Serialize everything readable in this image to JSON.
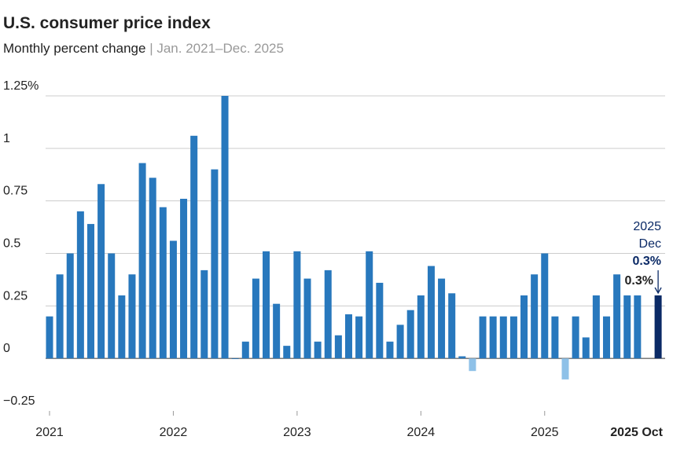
{
  "chart_data": {
    "type": "bar",
    "title": "U.S. consumer price index",
    "subtitle": "Monthly percent change",
    "subtitle_separator": "|",
    "subtitle_period": "Jan. 2021–Dec. 2025",
    "values": [
      0.2,
      0.4,
      0.5,
      0.7,
      0.64,
      0.83,
      0.5,
      0.3,
      0.4,
      0.93,
      0.86,
      0.72,
      0.56,
      0.76,
      1.06,
      0.42,
      0.9,
      1.25,
      0.0,
      0.08,
      0.38,
      0.51,
      0.26,
      0.06,
      0.51,
      0.38,
      0.08,
      0.42,
      0.11,
      0.21,
      0.2,
      0.51,
      0.36,
      0.08,
      0.16,
      0.23,
      0.3,
      0.44,
      0.38,
      0.31,
      0.01,
      -0.06,
      0.2,
      0.2,
      0.2,
      0.2,
      0.3,
      0.4,
      0.5,
      0.2,
      -0.1,
      0.2,
      0.1,
      0.3,
      0.2,
      0.4,
      0.3,
      0.3,
      null,
      0.3
    ],
    "value_labels": [
      null,
      null,
      null,
      null,
      null,
      null,
      null,
      null,
      null,
      null,
      null,
      null,
      null,
      null,
      null,
      null,
      null,
      null,
      null,
      null,
      null,
      null,
      null,
      null,
      null,
      null,
      null,
      null,
      null,
      null,
      null,
      null,
      null,
      null,
      null,
      null,
      null,
      null,
      null,
      null,
      null,
      null,
      null,
      null,
      null,
      null,
      null,
      null,
      null,
      null,
      null,
      null,
      null,
      null,
      null,
      null,
      null,
      "0.3%",
      null,
      "0.3%"
    ],
    "highlight_period": [
      "2025",
      "Dec"
    ],
    "colors": {
      "positive": "#2878bd",
      "negative": "#8ec1e8",
      "latest": "#0b2a66"
    },
    "xticks": [
      {
        "value": 0,
        "label": "2021"
      },
      {
        "value": 12,
        "label": "2022"
      },
      {
        "value": 24,
        "label": "2023"
      },
      {
        "value": 36,
        "label": "2024"
      },
      {
        "value": 48,
        "label": "2025"
      },
      {
        "value": 57,
        "label": "2025 Oct"
      }
    ],
    "ylim": [
      -0.25,
      1.25
    ],
    "yticks": [
      {
        "value": -0.25,
        "label": "−0.25"
      },
      0,
      0.25,
      0.5,
      0.75,
      1,
      {
        "value": 1.25,
        "label": "1.25%"
      }
    ],
    "grid": true
  }
}
